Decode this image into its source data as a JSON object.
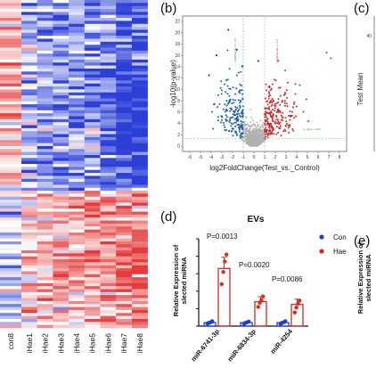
{
  "panels": {
    "b": "(b)",
    "c": "(c)",
    "d": "(d)",
    "e": "(e)"
  },
  "chart_data": [
    {
      "type": "heatmap",
      "panel": "a",
      "columns": [
        "con8",
        "Hae1",
        "Hae2",
        "Hae3",
        "Hae4",
        "Hae5",
        "Hae6",
        "Hae7",
        "Hae8"
      ],
      "column_labels_shown": [
        "con8",
        "iHae1",
        "iHae2",
        "iHae3",
        "iHae4",
        "iHae5",
        "iHae6",
        "iHae7",
        "iHae8"
      ],
      "colors": {
        "low": "#2b3fd8",
        "mid": "#ffffff",
        "high": "#e53a3a"
      },
      "pattern": "upper block mostly blue in Hae columns, lower block mostly red in Hae columns"
    },
    {
      "type": "scatter",
      "panel": "b",
      "xlabel": "log2FoldChange(Test_vs._Control)",
      "ylabel": "-log10(p-value)",
      "xticks": [
        -6,
        -5,
        -4,
        -3,
        -2,
        -1,
        0,
        1,
        2,
        3,
        4,
        5,
        6,
        7,
        8
      ],
      "xlim": [
        -6,
        8
      ],
      "yticks": [
        0,
        2,
        4,
        6,
        8,
        10,
        12,
        14,
        16,
        18,
        20,
        22
      ],
      "ylim": [
        0,
        22
      ],
      "threshold_labels": {
        "logfc_left": "FoldChange <= -1.0",
        "logfc_right": "FoldChange >= 1.0",
        "pval": "p_value = 0.05"
      },
      "series_colors": {
        "down": "#1f5fa8",
        "up": "#d42a2a",
        "ns": "#b0b0b0"
      },
      "pval_threshold_y": 1.3,
      "fc_threshold_x": [
        -1,
        1
      ]
    },
    {
      "type": "scatter",
      "panel": "c",
      "ylabel": "Test Mean",
      "ytick_first": "40",
      "partial": true
    },
    {
      "type": "bar",
      "panel": "d",
      "title": "EVs",
      "ylabel": [
        "Relative Expression of",
        "slected miRNA"
      ],
      "categories": [
        "miR-6741-3p",
        "miR-6834-3p",
        "miR-4254"
      ],
      "ylim": [
        0,
        25
      ],
      "yticks": [
        0,
        5,
        10,
        15,
        20,
        25
      ],
      "series": [
        {
          "name": "Con",
          "color": "#1a3fd6",
          "values": [
            1.0,
            1.0,
            1.0
          ],
          "errors": [
            0.3,
            0.3,
            0.3
          ],
          "points": [
            [
              0.7,
              0.9,
              1.1,
              1.4
            ],
            [
              0.6,
              0.9,
              1.1,
              1.3
            ],
            [
              0.6,
              0.9,
              1.1,
              1.4
            ]
          ]
        },
        {
          "name": "Hae",
          "color": "#d92a1a",
          "values": [
            16.5,
            7.0,
            6.2
          ],
          "errors": [
            3.2,
            1.4,
            1.5
          ],
          "points": [
            [
              12.0,
              15.5,
              18.5,
              20.5
            ],
            [
              5.5,
              6.7,
              7.4,
              8.5
            ],
            [
              3.9,
              5.3,
              6.4,
              7.3
            ]
          ]
        }
      ],
      "annotations": [
        "P=0.0013",
        "P=0.0020",
        "P=0.0086"
      ]
    },
    {
      "type": "bar",
      "panel": "e",
      "ylabel": [
        "Relative Expression of",
        "slected miRNA"
      ],
      "partial": true
    }
  ]
}
